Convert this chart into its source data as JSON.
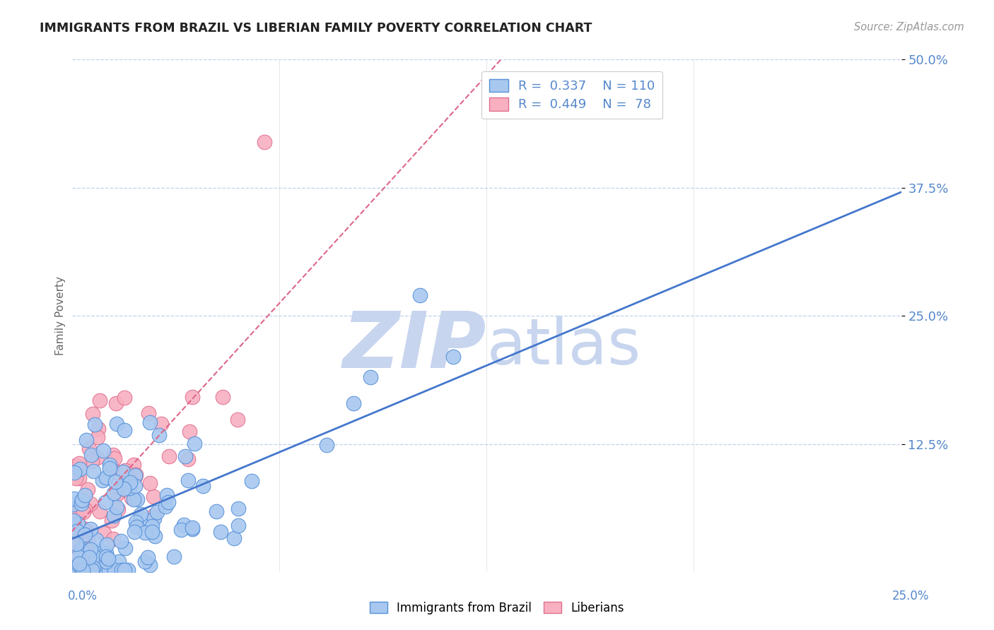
{
  "title": "IMMIGRANTS FROM BRAZIL VS LIBERIAN FAMILY POVERTY CORRELATION CHART",
  "source": "Source: ZipAtlas.com",
  "ylabel_text": "Family Poverty",
  "legend_label1": "Immigrants from Brazil",
  "legend_label2": "Liberians",
  "r1": "0.337",
  "n1": "110",
  "r2": "0.449",
  "n2": "78",
  "xlim": [
    0.0,
    25.0
  ],
  "ylim": [
    0.0,
    50.0
  ],
  "color_blue_fill": "#A8C8F0",
  "color_blue_edge": "#5590D8",
  "color_pink_fill": "#F8B0C0",
  "color_pink_edge": "#E07090",
  "color_blue_line": "#4477CC",
  "color_pink_line": "#DD6688",
  "color_axis_text": "#5588CC",
  "color_source": "#999999",
  "color_title": "#222222",
  "watermark_zip": "ZIP",
  "watermark_atlas": "atlas",
  "watermark_color": "#C8D5EE",
  "brazil_seed": 12345,
  "liberia_seed": 67890
}
